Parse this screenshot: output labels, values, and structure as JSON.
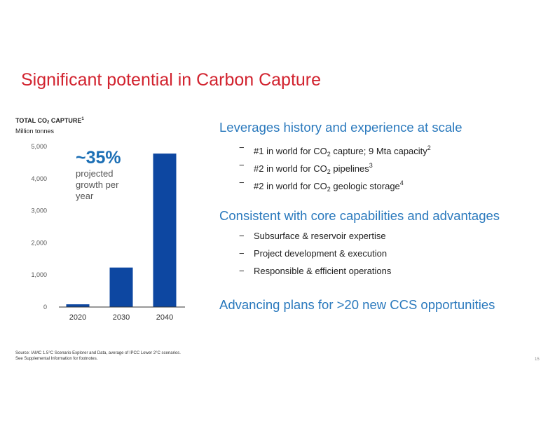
{
  "slide": {
    "title": "Significant potential in Carbon Capture",
    "page_number": "15",
    "source_line1": "Source: IAMC 1.5°C Scenario Explorer and Data, average of IPCC Lower 2°C scenarios.",
    "source_line2": "See Supplemental Information for footnotes."
  },
  "chart_header": {
    "title_pre": "TOTAL CO",
    "title_sub": "2",
    "title_post": " CAPTURE",
    "title_sup": "1",
    "unit": "Million tonnes"
  },
  "callout": {
    "value": "~35%",
    "text": "projected growth per year"
  },
  "chart_data": {
    "type": "bar",
    "title": "TOTAL CO2 CAPTURE",
    "ylabel": "Million tonnes",
    "xlabel": "",
    "categories": [
      "2020",
      "2030",
      "2040"
    ],
    "values": [
      85,
      1230,
      4780
    ],
    "ylim": [
      0,
      5000
    ],
    "yticks": [
      0,
      1000,
      2000,
      3000,
      4000,
      5000
    ],
    "ytick_labels": [
      "0",
      "1,000",
      "2,000",
      "3,000",
      "4,000",
      "5,000"
    ],
    "grid": false,
    "bar_color": "#0d47a1"
  },
  "sections": [
    {
      "title": "Leverages history and experience at scale",
      "bullets": [
        {
          "pre": "#1 in world for CO",
          "sub": "2",
          "post": " capture; 9 Mta capacity",
          "sup": "2"
        },
        {
          "pre": "#2 in world for CO",
          "sub": "2",
          "post": " pipelines",
          "sup": "3"
        },
        {
          "pre": "#2 in world for CO",
          "sub": "2",
          "post": " geologic storage",
          "sup": "4"
        }
      ]
    },
    {
      "title": "Consistent with core capabilities and advantages",
      "bullets": [
        {
          "pre": "Subsurface & reservoir expertise",
          "sub": "",
          "post": "",
          "sup": ""
        },
        {
          "pre": "Project development & execution",
          "sub": "",
          "post": "",
          "sup": ""
        },
        {
          "pre": "Responsible & efficient operations",
          "sub": "",
          "post": "",
          "sup": ""
        }
      ]
    },
    {
      "title": "Advancing plans for >20 new CCS opportunities",
      "bullets": []
    }
  ],
  "bullet_marker": "−",
  "colors": {
    "title_red": "#d2232f",
    "accent_blue": "#2a79bd",
    "callout_blue": "#1c6fb5",
    "bar_blue": "#0d47a1"
  }
}
